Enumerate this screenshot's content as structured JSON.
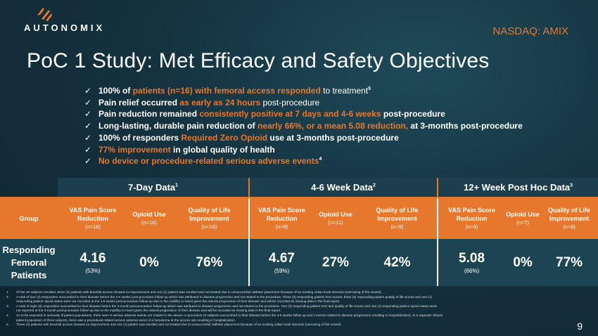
{
  "brand": {
    "name": "AUTONOMIX",
    "ticker": "NASDAQ: AMIX",
    "accent": "#e8772e"
  },
  "title": "PoC 1 Study: Met Efficacy and Safety Objectives",
  "bullets": [
    {
      "check": "✓",
      "parts": [
        {
          "t": "100% of ",
          "s": "b"
        },
        {
          "t": "patients (n=16) with femoral access responded",
          "s": "o"
        },
        {
          "t": " to treatment",
          "s": "n"
        },
        {
          "t": "5",
          "s": "sup"
        }
      ]
    },
    {
      "check": "✓",
      "parts": [
        {
          "t": "Pain relief occurred ",
          "s": "b"
        },
        {
          "t": "as early as 24 hours",
          "s": "o"
        },
        {
          "t": " post-procedure",
          "s": "n"
        }
      ]
    },
    {
      "check": "✓",
      "parts": [
        {
          "t": "Pain reduction remained ",
          "s": "b"
        },
        {
          "t": "consistently positive at 7 days and 4-6 weeks",
          "s": "o"
        },
        {
          "t": " post-procedure",
          "s": "b"
        }
      ]
    },
    {
      "check": "✓",
      "parts": [
        {
          "t": "Long-lasting, durable pain reduction of ",
          "s": "b"
        },
        {
          "t": "nearly 66%, or a mean 5.08 reduction,",
          "s": "o"
        },
        {
          "t": " at 3-months post-procedure",
          "s": "b"
        }
      ]
    },
    {
      "check": "✓",
      "parts": [
        {
          "t": "100% of responders ",
          "s": "b"
        },
        {
          "t": "Required Zero Opioid",
          "s": "o"
        },
        {
          "t": " use at 3-months post-procedure",
          "s": "b"
        }
      ]
    },
    {
      "check": "✓",
      "parts": [
        {
          "t": "77% improvement",
          "s": "o"
        },
        {
          "t": " in global quality of health",
          "s": "b"
        }
      ]
    },
    {
      "check": "✓",
      "parts": [
        {
          "t": "No device or procedure-related serious adverse events",
          "s": "o"
        },
        {
          "t": "4",
          "s": "sup"
        }
      ]
    }
  ],
  "table": {
    "groups": [
      {
        "label": "7-Day Data",
        "sup": "1"
      },
      {
        "label": "4-6 Week Data",
        "sup": "2"
      },
      {
        "label": "12+ Week Post Hoc Data",
        "sup": "3"
      }
    ],
    "group_col": "Group",
    "columns": [
      {
        "title": "VAS Pain Score Reduction",
        "sub": "(n=16)"
      },
      {
        "title": "Opioid Use",
        "sub": "(n=16)"
      },
      {
        "title": "Quality of Life Improvement",
        "sub": "(n=16)"
      },
      {
        "title": "VAS Pain Score Reduction",
        "sub": "(n=9)"
      },
      {
        "title": "Opioid Use",
        "sub": "(n=11)"
      },
      {
        "title": "Quality of Life Improvement",
        "sub": "(n=9)"
      },
      {
        "title": "VAS Pain Score Reduction",
        "sub": "(n=6)"
      },
      {
        "title": "Opioid Use",
        "sub": "(n=7)"
      },
      {
        "title": "Quality of Life Improvement",
        "sub": "(n=6)"
      }
    ],
    "row": {
      "label": "Responding Femoral Patients",
      "values": [
        {
          "v": "4.16",
          "sub": "(53%)"
        },
        {
          "v": "0%",
          "sub": ""
        },
        {
          "v": "76%",
          "sub": ""
        },
        {
          "v": "4.67",
          "sub": "(59%)"
        },
        {
          "v": "27%",
          "sub": ""
        },
        {
          "v": "42%",
          "sub": ""
        },
        {
          "v": "5.08",
          "sub": "(66%)"
        },
        {
          "v": "0%",
          "sub": ""
        },
        {
          "v": "77%",
          "sub": ""
        }
      ]
    }
  },
  "footnotes": [
    {
      "n": "1.",
      "text": "Of the 20 subjects enrolled, three (3) patients with brachial access showed no improvement and one (1) patient was enrolled and not treated due to unsuccessful catheter placement because of an existing celiac trunk stenosis (narrowing of the vessel)."
    },
    {
      "n": "2.",
      "text": "A total of four (4) responders succumbed to their disease before the 4-6 weeks post-procedure follow-up which was attributed to disease progression and not related to the procedure. Three (3) responding patient VAS scores, three (3) responding patient quality of life scores and one (1)"
    },
    {
      "n": "",
      "text": "responding patient opioid status were not recorded at the 4-6 weeks post-procedure follow-up due to the inability to travel given the natural progression of their disease and will be recorded as missing data in the final report."
    },
    {
      "n": "3.",
      "text": "A total of eight (8) responders succumbed to their disease before the 3-month post-procedure follow-up which was attributed to disease progression and not related to the procedure. Two (2) responding patient VAS and quality of life scores and one (1) responding patient opioid status were"
    },
    {
      "n": "",
      "text": "not reported at the 3-month post-procedure follow-up due to the inability to travel given the natural progression of their disease and will be recorded as missing data in the final report."
    },
    {
      "n": "4.",
      "text": "As to be expected in seriously ill patient populations, there were 8 serious adverse events not related to the device or procedure (6 subjects succumbed to their disease before the 4-6 weeks follow up and 2 events related to disease progression resulting in hospitalization). In a separate clinical"
    },
    {
      "n": "",
      "text": "patient population of three subjects, there was a procedural related serious adverse event of a hematoma at the access site resulting in hospitalization."
    },
    {
      "n": "5.",
      "text": "Three (3) patients with brachial access showed no improvement and one (1) patient was enrolled and not treated due to unsuccessful catheter placement because of an existing celiac trunk stenosis (narrowing of the vessel)."
    }
  ],
  "page_number": "9"
}
